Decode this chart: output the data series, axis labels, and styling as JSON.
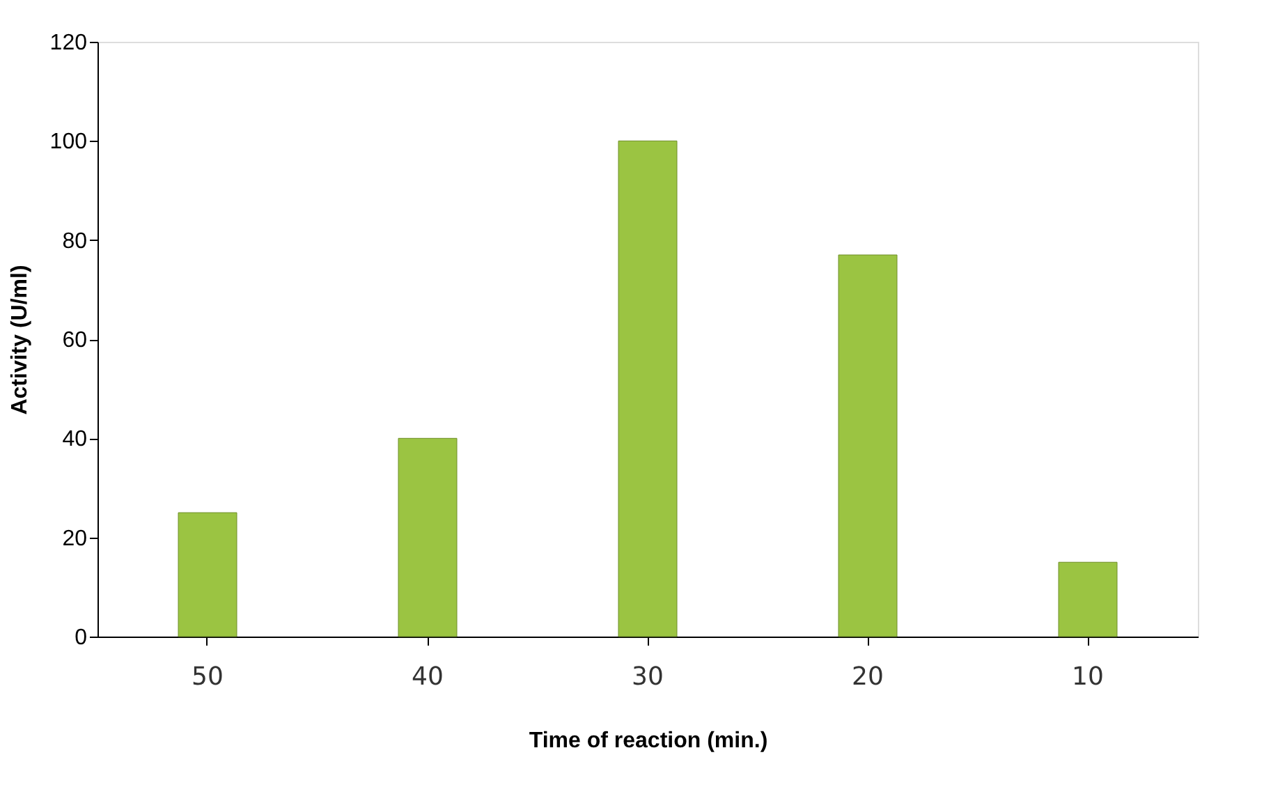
{
  "chart_data": {
    "type": "bar",
    "xlabel": "Time of reaction (min.)",
    "ylabel": "Activity (U/ml)",
    "categories": [
      "50",
      "40",
      "30",
      "20",
      "10"
    ],
    "values": [
      25,
      40,
      100,
      77,
      15
    ],
    "color": "#9bc442",
    "ylim": [
      0,
      120
    ],
    "yticks": [
      0,
      20,
      40,
      60,
      80,
      100,
      120
    ],
    "grid": false
  }
}
